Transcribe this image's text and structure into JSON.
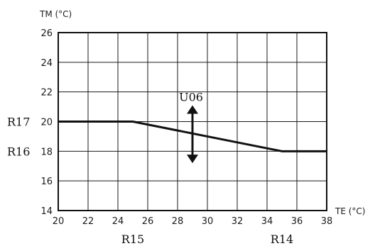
{
  "chart_data": {
    "type": "line",
    "xlabel": "TE (°C)",
    "ylabel": "TM (°C)",
    "xlim": [
      20,
      38
    ],
    "ylim": [
      14,
      26
    ],
    "x_ticks": [
      "20",
      "22",
      "24",
      "26",
      "28",
      "30",
      "32",
      "34",
      "36",
      "38"
    ],
    "y_ticks": [
      "14",
      "16",
      "18",
      "20",
      "22",
      "24",
      "26"
    ],
    "grid": true,
    "series": [
      {
        "points": [
          {
            "x": 20,
            "y": 20
          },
          {
            "x": 25,
            "y": 20
          },
          {
            "x": 35,
            "y": 18
          },
          {
            "x": 38,
            "y": 18
          }
        ]
      }
    ],
    "annotations": [
      {
        "name": "R17",
        "axis": "y",
        "value": 20
      },
      {
        "name": "R16",
        "axis": "y",
        "value": 18
      },
      {
        "name": "R15",
        "axis": "x",
        "value": 25
      },
      {
        "name": "R14",
        "axis": "x",
        "value": 35
      }
    ],
    "shift_arrow": {
      "label": "U06",
      "x": 29,
      "direction": "up-down",
      "y_range": [
        17.2,
        21.1
      ]
    },
    "colors": {
      "line": "#111111",
      "grid": "#1a1a1a",
      "background": "#ffffff"
    }
  }
}
